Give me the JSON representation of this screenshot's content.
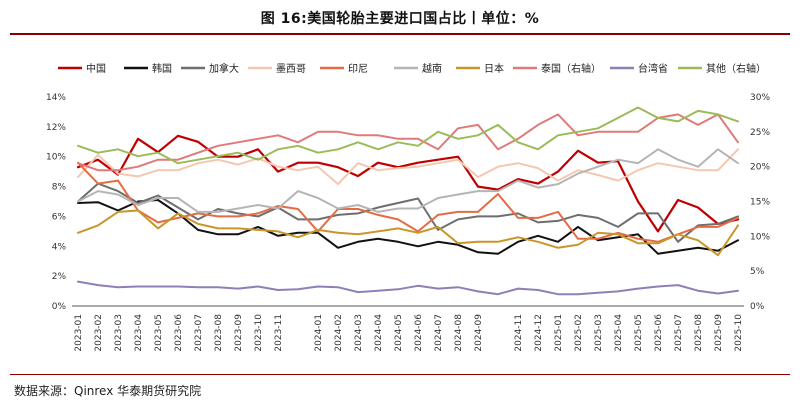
{
  "header": {
    "title": "图 16:美国轮胎主要进口国占比丨单位：%",
    "source": "数据来源：Qinrex 华泰期货研究院"
  },
  "chart_data": {
    "type": "line",
    "title": "图 16:美国轮胎主要进口国占比丨单位：%",
    "categories": [
      "2023-01",
      "2023-02",
      "2023-03",
      "2023-04",
      "2023-05",
      "2023-06",
      "2023-07",
      "2023-08",
      "2023-09",
      "2023-10",
      "2023-11",
      "2023-12",
      "2024-01",
      "2024-02",
      "2024-03",
      "2024-04",
      "2024-05",
      "2024-06",
      "2024-07",
      "2024-08",
      "2024-09",
      "2024-10",
      "2024-11",
      "2024-12",
      "2025-01",
      "2025-02",
      "2025-03",
      "2025-04",
      "2025-05",
      "2025-06",
      "2025-07",
      "2025-08",
      "2025-09",
      "2025-10"
    ],
    "x_tick_labels": [
      "2023-01",
      "2023-02",
      "2023-03",
      "2023-04",
      "2023-05",
      "2023-06",
      "2023-07",
      "2023-08",
      "2023-09",
      "2023-10",
      "2023-11",
      "2024-01",
      "2024-02",
      "2024-03",
      "2024-04",
      "2024-05",
      "2024-06",
      "2024-07",
      "2024-08",
      "2024-09",
      "2024-11",
      "2024-12",
      "2025-01",
      "2025-02",
      "2025-03",
      "2025-04",
      "2025-05",
      "2025-06",
      "2025-07",
      "2025-08",
      "2025-09",
      "2025-10"
    ],
    "y_left": {
      "ticks": [
        "0%",
        "2%",
        "4%",
        "6%",
        "8%",
        "10%",
        "12%",
        "14%"
      ],
      "ylim": [
        0,
        14
      ]
    },
    "y_right": {
      "ticks": [
        "0%",
        "5%",
        "10%",
        "15%",
        "20%",
        "25%",
        "30%"
      ],
      "ylim": [
        0,
        30
      ]
    },
    "legend_position": "top",
    "series": [
      {
        "name": "中国",
        "axis": "left",
        "color": "#c00000",
        "width": 2.2,
        "values": [
          9.3,
          9.8,
          8.8,
          11.2,
          10.3,
          11.4,
          11.0,
          10.0,
          10.0,
          10.5,
          9.0,
          9.6,
          9.6,
          9.3,
          8.7,
          9.6,
          9.3,
          9.6,
          9.8,
          10.0,
          8.0,
          7.8,
          8.5,
          8.2,
          9.0,
          10.4,
          9.6,
          9.7,
          7.0,
          5.0,
          7.1,
          6.6,
          5.5,
          5.8
        ]
      },
      {
        "name": "韩国",
        "axis": "left",
        "color": "#111111",
        "width": 2.0,
        "values": [
          6.9,
          6.95,
          6.4,
          7.0,
          7.1,
          6.2,
          5.1,
          4.8,
          4.8,
          5.3,
          4.7,
          4.9,
          4.9,
          3.9,
          4.3,
          4.5,
          4.3,
          4.0,
          4.3,
          4.1,
          3.6,
          3.5,
          4.3,
          4.7,
          4.3,
          5.3,
          4.4,
          4.6,
          4.8,
          3.5,
          3.7,
          3.9,
          3.7,
          4.4
        ]
      },
      {
        "name": "加拿大",
        "axis": "left",
        "color": "#6e6e6e",
        "width": 2.0,
        "values": [
          7.0,
          8.2,
          7.7,
          6.9,
          7.4,
          6.6,
          5.8,
          6.5,
          6.2,
          6.0,
          6.6,
          5.8,
          5.8,
          6.1,
          6.2,
          6.6,
          6.9,
          7.2,
          5.1,
          5.8,
          6.0,
          6.0,
          6.2,
          5.6,
          5.7,
          6.1,
          5.9,
          5.3,
          6.2,
          6.2,
          4.3,
          5.4,
          5.5,
          6.0
        ]
      },
      {
        "name": "墨西哥",
        "axis": "right",
        "color": "#f4c7b0",
        "width": 2.0,
        "values": [
          18.5,
          21.7,
          19.0,
          18.6,
          19.5,
          19.5,
          20.5,
          21.0,
          20.3,
          21.2,
          20.0,
          19.5,
          20.0,
          17.5,
          20.5,
          19.5,
          19.8,
          20.0,
          20.5,
          21.0,
          18.5,
          20.0,
          20.5,
          19.8,
          18.0,
          19.5,
          18.8,
          18.0,
          19.5,
          20.5,
          20.0,
          19.5,
          19.5,
          22.5
        ]
      },
      {
        "name": "印尼",
        "axis": "left",
        "color": "#e46c45",
        "width": 2.0,
        "values": [
          9.6,
          8.2,
          8.4,
          6.4,
          5.6,
          5.9,
          6.2,
          6.0,
          6.0,
          6.2,
          6.7,
          6.5,
          5.0,
          6.5,
          6.5,
          6.1,
          5.8,
          5.0,
          6.1,
          6.3,
          6.3,
          7.5,
          5.9,
          5.9,
          6.3,
          4.5,
          4.5,
          4.9,
          4.5,
          4.3,
          4.8,
          5.3,
          5.3,
          5.9
        ]
      },
      {
        "name": "越南",
        "axis": "right",
        "color": "#b5b5b5",
        "width": 2.0,
        "values": [
          15.0,
          16.5,
          16.0,
          14.5,
          15.5,
          15.5,
          13.5,
          13.5,
          14.0,
          14.5,
          14.0,
          16.5,
          15.5,
          14.0,
          14.5,
          13.5,
          14.0,
          14.0,
          15.5,
          16.0,
          16.5,
          16.5,
          18.0,
          17.0,
          17.5,
          19.0,
          20.0,
          21.0,
          20.5,
          22.5,
          21.0,
          20.0,
          22.5,
          20.5
        ]
      },
      {
        "name": "日本",
        "axis": "left",
        "color": "#c9962a",
        "width": 2.0,
        "values": [
          4.9,
          5.4,
          6.3,
          6.4,
          5.2,
          6.2,
          5.5,
          5.2,
          5.2,
          5.1,
          5.0,
          4.6,
          5.1,
          4.9,
          4.8,
          5.0,
          5.2,
          4.9,
          5.3,
          4.2,
          4.3,
          4.3,
          4.6,
          4.3,
          3.9,
          4.1,
          4.9,
          4.8,
          4.2,
          4.2,
          4.8,
          4.4,
          3.4,
          5.4
        ]
      },
      {
        "name": "泰国（右轴）",
        "axis": "right",
        "color": "#e07a7a",
        "width": 2.0,
        "values": [
          20.5,
          19.5,
          19.5,
          20.0,
          21.0,
          21.0,
          22.0,
          23.0,
          23.5,
          24.0,
          24.5,
          23.5,
          25.0,
          25.0,
          24.5,
          24.5,
          24.0,
          24.0,
          22.5,
          25.5,
          26.0,
          22.5,
          24.0,
          26.0,
          27.5,
          24.5,
          25.0,
          25.0,
          25.0,
          27.0,
          27.5,
          26.0,
          27.5,
          23.5
        ]
      },
      {
        "name": "台湾省",
        "axis": "right",
        "color": "#8f7fb6",
        "width": 2.0,
        "values": [
          3.5,
          3.0,
          2.7,
          2.8,
          2.8,
          2.8,
          2.7,
          2.7,
          2.5,
          2.8,
          2.3,
          2.4,
          2.8,
          2.7,
          2.0,
          2.2,
          2.4,
          2.9,
          2.5,
          2.7,
          2.1,
          1.7,
          2.5,
          2.3,
          1.7,
          1.7,
          1.9,
          2.1,
          2.5,
          2.8,
          3.0,
          2.2,
          1.8,
          2.2
        ]
      },
      {
        "name": "其他（右轴）",
        "axis": "right",
        "color": "#9bbb59",
        "width": 2.0,
        "values": [
          23.0,
          22.0,
          22.5,
          21.5,
          22.0,
          20.5,
          21.0,
          21.5,
          22.0,
          21.0,
          22.5,
          23.0,
          22.0,
          22.5,
          23.5,
          22.5,
          23.5,
          23.0,
          25.0,
          24.0,
          24.5,
          26.0,
          23.5,
          22.5,
          24.5,
          25.0,
          25.5,
          27.0,
          28.5,
          27.0,
          26.5,
          28.0,
          27.5,
          26.5
        ]
      }
    ]
  }
}
